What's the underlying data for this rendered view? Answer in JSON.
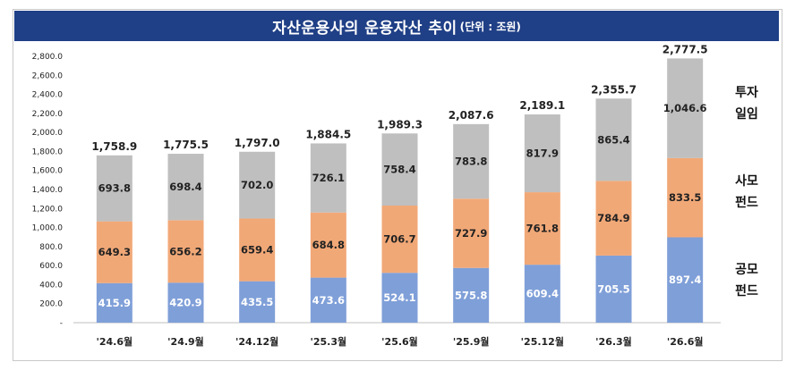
{
  "title": {
    "main": "자산운용사의 운용자산 추이",
    "unit": "(단위 : 조원)"
  },
  "legend": {
    "investment_line1": "투자",
    "investment_line2": "일임",
    "private_line1": "사모",
    "private_line2": "펀드",
    "public_line1": "공모",
    "public_line2": "펀드"
  },
  "colors": {
    "public": "#7f9fd8",
    "private": "#f1a877",
    "investment": "#bfbfbf",
    "title_bg": "#1f3f86"
  },
  "chart_data": {
    "type": "bar",
    "stacked": true,
    "categories": [
      "'24.6월",
      "'24.9월",
      "'24.12월",
      "'25.3월",
      "'25.6월",
      "'25.9월",
      "'25.12월",
      "'26.3월",
      "'26.6월"
    ],
    "series": [
      {
        "name": "공모펀드",
        "values": [
          415.9,
          420.9,
          435.5,
          473.6,
          524.1,
          575.8,
          609.4,
          705.5,
          897.4
        ]
      },
      {
        "name": "사모펀드",
        "values": [
          649.3,
          656.2,
          659.4,
          684.8,
          706.7,
          727.9,
          761.8,
          784.9,
          833.5
        ]
      },
      {
        "name": "투자일임",
        "values": [
          693.8,
          698.4,
          702.0,
          726.1,
          758.4,
          783.8,
          817.9,
          865.4,
          1046.6
        ]
      }
    ],
    "value_labels": {
      "public": [
        "415.9",
        "420.9",
        "435.5",
        "473.6",
        "524.1",
        "575.8",
        "609.4",
        "705.5",
        "897.4"
      ],
      "private": [
        "649.3",
        "656.2",
        "659.4",
        "684.8",
        "706.7",
        "727.9",
        "761.8",
        "784.9",
        "833.5"
      ],
      "investment": [
        "693.8",
        "698.4",
        "702.0",
        "726.1",
        "758.4",
        "783.8",
        "817.9",
        "865.4",
        "1,046.6"
      ]
    },
    "totals": [
      "1,758.9",
      "1,775.5",
      "1,797.0",
      "1,884.5",
      "1,989.3",
      "2,087.6",
      "2,189.1",
      "2,355.7",
      "2,777.5"
    ],
    "y_ticks": [
      "-",
      "200.0",
      "400.0",
      "600.0",
      "800.0",
      "1,000.0",
      "1,200.0",
      "1,400.0",
      "1,600.0",
      "1,800.0",
      "2,000.0",
      "2,200.0",
      "2,400.0",
      "2,600.0",
      "2,800.0"
    ],
    "ylim": [
      0,
      2800
    ],
    "grid": false,
    "legend_position": "right"
  }
}
